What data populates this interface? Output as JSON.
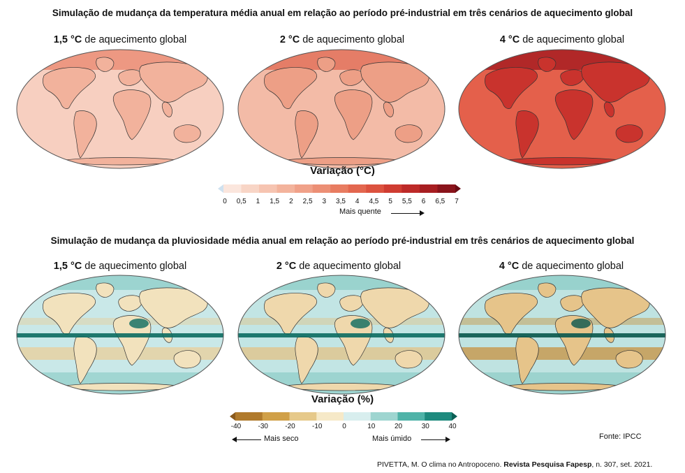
{
  "temperature": {
    "title": "Simulação de mudança da temperatura média anual em relação ao período pré-industrial em três cenários de aquecimento global",
    "scenarios": [
      {
        "value": "1,5 °C",
        "label": "de aquecimento global"
      },
      {
        "value": "2 °C",
        "label": "de aquecimento global"
      },
      {
        "value": "4 °C",
        "label": "de aquecimento global"
      }
    ],
    "legend_title": "Variação (°C)",
    "ticks": [
      "0",
      "0,5",
      "1",
      "1,5",
      "2",
      "2,5",
      "3",
      "3,5",
      "4",
      "4,5",
      "5",
      "5,5",
      "6",
      "6,5",
      "7"
    ],
    "arrow_label": "Mais quente",
    "colors": [
      "#cfe1ef",
      "#fbe6dd",
      "#f8d5c6",
      "#f6c4b1",
      "#f3b39c",
      "#f0a189",
      "#ec8f75",
      "#e87c61",
      "#e3674f",
      "#dc523f",
      "#cf3c31",
      "#bd2a28",
      "#a71e21",
      "#8a141b",
      "#6a0c14"
    ],
    "map_fills": {
      "ocean": [
        "#f7cfc0",
        "#f3bba7",
        "#e4604b"
      ],
      "land": [
        "#f2b29c",
        "#ed9f86",
        "#c9332d"
      ],
      "pole": [
        "#ea8a72",
        "#e16e58",
        "#a41a1f"
      ]
    }
  },
  "precipitation": {
    "title": "Simulação de mudança da pluviosidade média anual em relação ao período pré-industrial em três cenários de aquecimento global",
    "scenarios": [
      {
        "value": "1,5 °C",
        "label": "de aquecimento global"
      },
      {
        "value": "2 °C",
        "label": "de aquecimento global"
      },
      {
        "value": "4 °C",
        "label": "de aquecimento global"
      }
    ],
    "legend_title": "Variação (%)",
    "ticks": [
      "-40",
      "-30",
      "-20",
      "-10",
      "0",
      "10",
      "20",
      "30",
      "40"
    ],
    "arrow_left_label": "Mais seco",
    "arrow_right_label": "Mais úmido",
    "colors": [
      "#8a5a1e",
      "#b07a2c",
      "#d0a048",
      "#e6c98a",
      "#f6e9c8",
      "#d8eeee",
      "#9ed5d0",
      "#4fb3a8",
      "#1e8a7e",
      "#0b5f55"
    ],
    "map_fills": {
      "ocean": [
        "#c9e8e8",
        "#c2e5e4",
        "#bfe3e1"
      ],
      "land": [
        "#f2e2bd",
        "#efd8ac",
        "#e6c48a"
      ],
      "band": [
        "#0b6b60",
        "#0b6b60",
        "#08564d"
      ],
      "dry": [
        "#e9cf9a",
        "#e3c185",
        "#c8923f"
      ]
    }
  },
  "source_label": "Fonte: IPCC",
  "citation": {
    "author": "PIVETTA, M. O clima no Antropoceno. ",
    "journal": "Revista Pesquisa Fapesp",
    "details": ", n. 307, set. 2021."
  }
}
